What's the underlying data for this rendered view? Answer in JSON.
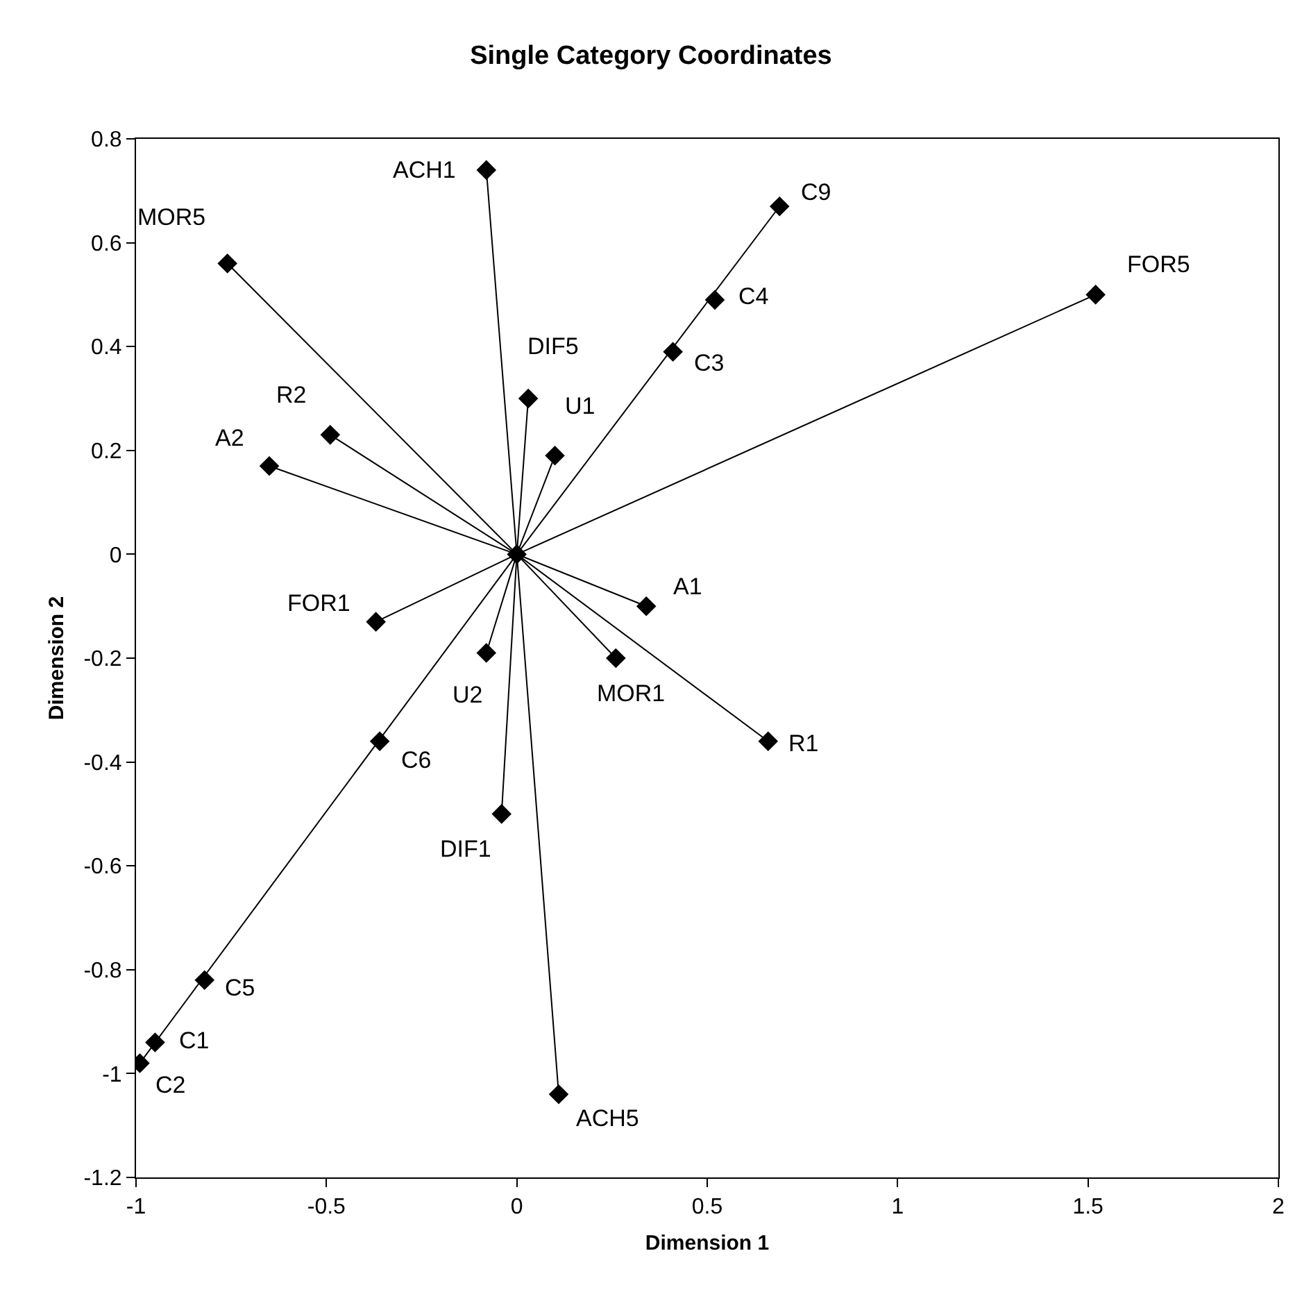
{
  "chart_data": {
    "type": "scatter",
    "title": "Single Category Coordinates",
    "xlabel": "Dimension 1",
    "ylabel": "Dimension 2",
    "xlim": [
      -1,
      2
    ],
    "xticks": [
      -1,
      -0.5,
      0,
      0.5,
      1,
      1.5,
      2
    ],
    "ylim": [
      -1.2,
      0.8
    ],
    "yticks": [
      -1.2,
      -1,
      -0.8,
      -0.6,
      -0.4,
      -0.2,
      0,
      0.2,
      0.4,
      0.6,
      0.8
    ],
    "series": [
      {
        "type": "line",
        "color": "#000000",
        "marker": "none",
        "line_style": "solid",
        "x": [
          0,
          -0.08
        ],
        "values": [
          0,
          0.74
        ]
      },
      {
        "type": "line",
        "color": "#000000",
        "marker": "none",
        "line_style": "solid",
        "x": [
          0,
          -0.76
        ],
        "values": [
          0,
          0.56
        ]
      },
      {
        "type": "line",
        "color": "#000000",
        "marker": "none",
        "line_style": "solid",
        "x": [
          0,
          -0.49
        ],
        "values": [
          0,
          0.23
        ]
      },
      {
        "type": "line",
        "color": "#000000",
        "marker": "none",
        "line_style": "solid",
        "x": [
          0,
          -0.65
        ],
        "values": [
          0,
          0.17
        ]
      },
      {
        "type": "line",
        "color": "#000000",
        "marker": "none",
        "line_style": "solid",
        "x": [
          0,
          0.03
        ],
        "values": [
          0,
          0.3
        ]
      },
      {
        "type": "line",
        "color": "#000000",
        "marker": "none",
        "line_style": "solid",
        "x": [
          0,
          0.1
        ],
        "values": [
          0,
          0.19
        ]
      },
      {
        "type": "line",
        "color": "#000000",
        "marker": "none",
        "line_style": "solid",
        "x": [
          0,
          0.69
        ],
        "values": [
          0,
          0.67
        ]
      },
      {
        "type": "line",
        "color": "#000000",
        "marker": "none",
        "line_style": "solid",
        "x": [
          0,
          1.52
        ],
        "values": [
          0,
          0.5
        ]
      },
      {
        "type": "line",
        "color": "#000000",
        "marker": "none",
        "line_style": "solid",
        "x": [
          0,
          -0.37
        ],
        "values": [
          0,
          -0.13
        ]
      },
      {
        "type": "line",
        "color": "#000000",
        "marker": "none",
        "line_style": "solid",
        "x": [
          0,
          -0.08
        ],
        "values": [
          0,
          -0.19
        ]
      },
      {
        "type": "line",
        "color": "#000000",
        "marker": "none",
        "line_style": "solid",
        "x": [
          0,
          0.26
        ],
        "values": [
          0,
          -0.2
        ]
      },
      {
        "type": "line",
        "color": "#000000",
        "marker": "none",
        "line_style": "solid",
        "x": [
          0,
          -0.04
        ],
        "values": [
          0,
          -0.5
        ]
      },
      {
        "type": "line",
        "color": "#000000",
        "marker": "none",
        "line_style": "solid",
        "x": [
          0,
          -0.99
        ],
        "values": [
          0,
          -0.98
        ]
      },
      {
        "type": "line",
        "color": "#000000",
        "marker": "none",
        "line_style": "solid",
        "x": [
          0,
          0.11
        ],
        "values": [
          0,
          -1.04
        ]
      },
      {
        "type": "line",
        "color": "#000000",
        "marker": "none",
        "line_style": "solid",
        "x": [
          0,
          0.34
        ],
        "values": [
          0,
          -0.1
        ]
      },
      {
        "type": "line",
        "color": "#000000",
        "marker": "none",
        "line_style": "solid",
        "x": [
          0,
          0.66
        ],
        "values": [
          0,
          -0.36
        ]
      },
      {
        "color": "#000000",
        "marker": "diamond",
        "x": [
          0,
          -0.08,
          -0.76,
          -0.49,
          -0.65,
          0.03,
          0.1,
          0.69,
          0.52,
          0.41,
          1.52,
          -0.37,
          -0.08,
          0.26,
          -0.36,
          -0.04,
          -0.82,
          -0.95,
          -0.99,
          0.11,
          0.34,
          0.66
        ],
        "values": [
          0,
          0.74,
          0.56,
          0.23,
          0.17,
          0.3,
          0.19,
          0.67,
          0.49,
          0.39,
          0.5,
          -0.13,
          -0.19,
          -0.2,
          -0.36,
          -0.5,
          -0.82,
          -0.94,
          -0.98,
          -1.04,
          -0.1,
          -0.36
        ]
      }
    ],
    "annotations": [
      {
        "text": "ACH1",
        "x": -0.08,
        "y": 0.74
      },
      {
        "text": "MOR5",
        "x": -0.76,
        "y": 0.56
      },
      {
        "text": "R2",
        "x": -0.49,
        "y": 0.23
      },
      {
        "text": "A2",
        "x": -0.65,
        "y": 0.17
      },
      {
        "text": "DIF5",
        "x": 0.03,
        "y": 0.3
      },
      {
        "text": "U1",
        "x": 0.1,
        "y": 0.19
      },
      {
        "text": "C9",
        "x": 0.69,
        "y": 0.67
      },
      {
        "text": "C4",
        "x": 0.52,
        "y": 0.49
      },
      {
        "text": "C3",
        "x": 0.41,
        "y": 0.39
      },
      {
        "text": "FOR5",
        "x": 1.52,
        "y": 0.5
      },
      {
        "text": "FOR1",
        "x": -0.37,
        "y": -0.13
      },
      {
        "text": "U2",
        "x": -0.08,
        "y": -0.19
      },
      {
        "text": "MOR1",
        "x": 0.26,
        "y": -0.2
      },
      {
        "text": "C6",
        "x": -0.36,
        "y": -0.36
      },
      {
        "text": "DIF1",
        "x": -0.04,
        "y": -0.5
      },
      {
        "text": "C5",
        "x": -0.82,
        "y": -0.82
      },
      {
        "text": "C1",
        "x": -0.95,
        "y": -0.94
      },
      {
        "text": "C2",
        "x": -0.99,
        "y": -0.98
      },
      {
        "text": "ACH5",
        "x": 0.11,
        "y": -1.04
      },
      {
        "text": "A1",
        "x": 0.34,
        "y": -0.1
      },
      {
        "text": "R1",
        "x": 0.66,
        "y": -0.36
      }
    ]
  }
}
